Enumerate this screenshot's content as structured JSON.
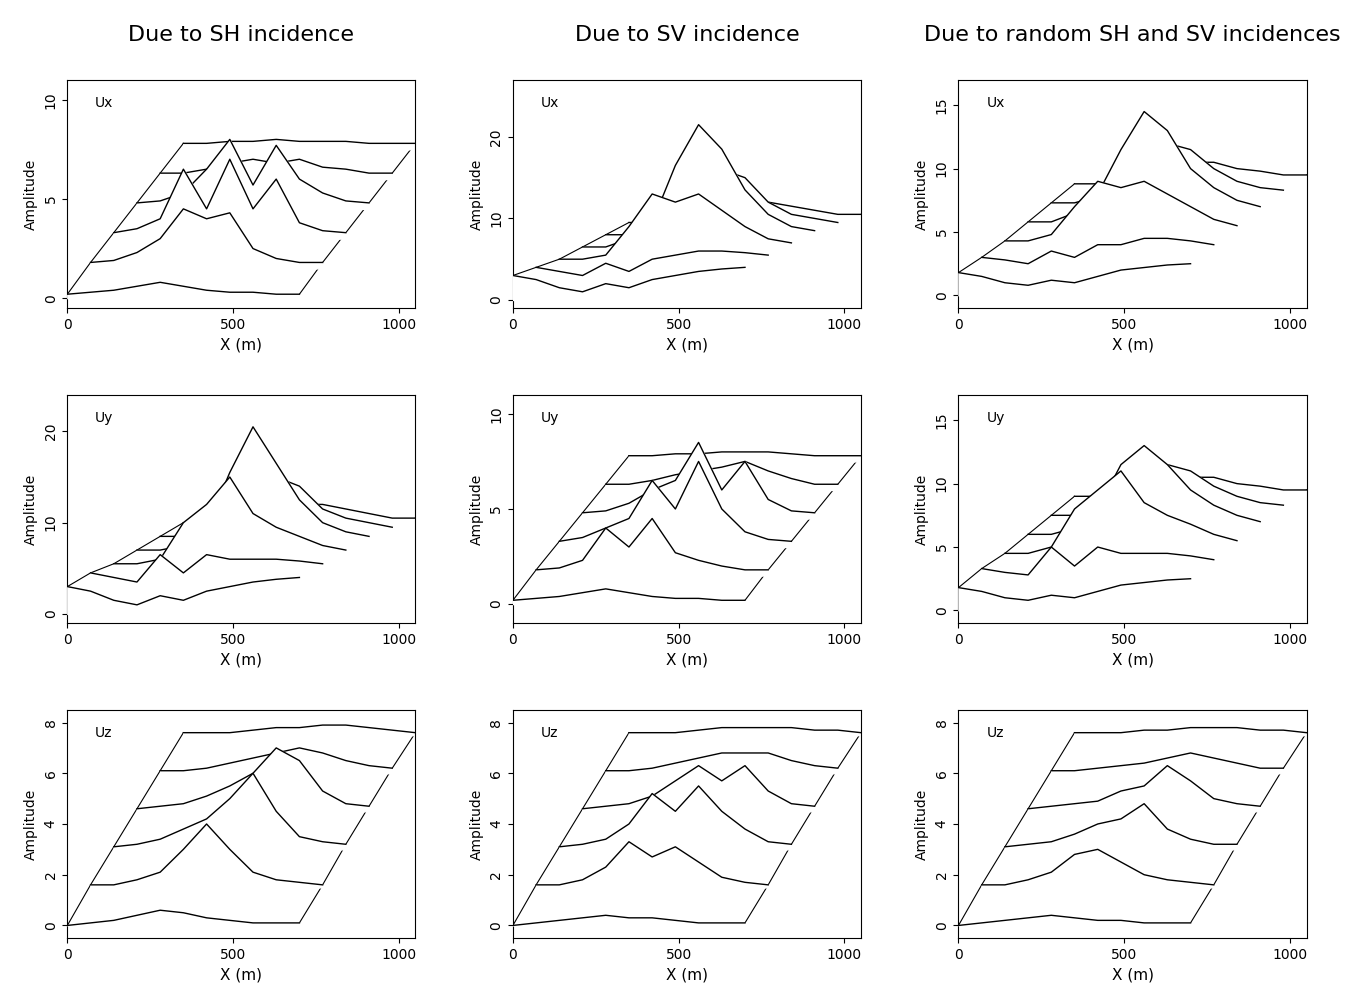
{
  "column_titles": [
    "Due to SH incidence",
    "Due to SV incidence",
    "Due to random SH and SV incidences"
  ],
  "chart_data": [
    {
      "type": "surface",
      "label": "Ux",
      "xlabel": "X (m)",
      "ylabel": "Amplitude",
      "x": [
        0,
        70,
        140,
        210,
        280,
        350,
        420,
        490,
        560,
        630,
        700
      ],
      "xlim": [
        0,
        1050
      ],
      "xticks": [
        0,
        500,
        1000
      ],
      "ylim": [
        -0.5,
        11
      ],
      "yticks": [
        0,
        5,
        10
      ],
      "series": [
        {
          "values": [
            0.2,
            0.3,
            0.4,
            0.6,
            0.8,
            0.6,
            0.4,
            0.3,
            0.3,
            0.2,
            0.2
          ]
        },
        {
          "values": [
            0.3,
            0.4,
            0.8,
            1.5,
            3.0,
            2.5,
            2.8,
            1.0,
            0.5,
            0.3,
            0.3
          ]
        },
        {
          "values": [
            0.3,
            0.5,
            1.0,
            3.5,
            1.5,
            4.0,
            1.5,
            3.0,
            0.8,
            0.4,
            0.3
          ]
        },
        {
          "values": [
            0.3,
            0.4,
            0.8,
            2.0,
            3.5,
            1.2,
            3.2,
            1.5,
            0.8,
            0.4,
            0.3
          ]
        },
        {
          "values": [
            0.3,
            0.3,
            0.5,
            0.8,
            1.0,
            0.8,
            1.0,
            0.6,
            0.5,
            0.3,
            0.3
          ]
        },
        {
          "values": [
            0.3,
            0.3,
            0.4,
            0.4,
            0.5,
            0.4,
            0.4,
            0.4,
            0.3,
            0.3,
            0.3
          ]
        }
      ]
    },
    {
      "type": "surface",
      "label": "Ux",
      "xlabel": "X (m)",
      "ylabel": "Amplitude",
      "x": [
        0,
        70,
        140,
        210,
        280,
        350,
        420,
        490,
        560,
        630,
        700
      ],
      "xlim": [
        0,
        1050
      ],
      "xticks": [
        0,
        500,
        1000
      ],
      "ylim": [
        -1,
        27
      ],
      "yticks": [
        0,
        10,
        20
      ],
      "series": [
        {
          "values": [
            3.0,
            2.5,
            1.5,
            1.0,
            2.0,
            1.5,
            2.5,
            3.0,
            3.5,
            3.8,
            4.0
          ]
        },
        {
          "values": [
            2.5,
            2.0,
            1.5,
            3.0,
            2.0,
            3.5,
            4.0,
            4.5,
            4.5,
            4.3,
            4.0
          ]
        },
        {
          "values": [
            2.0,
            2.0,
            2.5,
            6.0,
            10.0,
            9.0,
            10.0,
            8.0,
            6.0,
            4.5,
            4.0
          ]
        },
        {
          "values": [
            2.0,
            2.0,
            3.0,
            5.0,
            12.0,
            17.0,
            14.0,
            9.0,
            6.0,
            4.5,
            4.0
          ]
        },
        {
          "values": [
            2.0,
            2.0,
            2.5,
            3.5,
            6.0,
            10.0,
            9.0,
            6.0,
            4.5,
            4.0,
            3.5
          ]
        },
        {
          "values": [
            2.0,
            2.0,
            2.0,
            2.5,
            3.5,
            4.5,
            4.5,
            4.0,
            3.5,
            3.0,
            3.0
          ]
        }
      ]
    },
    {
      "type": "surface",
      "label": "Ux",
      "xlabel": "X (m)",
      "ylabel": "Amplitude",
      "x": [
        0,
        70,
        140,
        210,
        280,
        350,
        420,
        490,
        560,
        630,
        700
      ],
      "xlim": [
        0,
        1050
      ],
      "xticks": [
        0,
        500,
        1000
      ],
      "ylim": [
        -1,
        17
      ],
      "yticks": [
        0,
        5,
        10,
        15
      ],
      "series": [
        {
          "values": [
            1.8,
            1.5,
            1.0,
            0.8,
            1.2,
            1.0,
            1.5,
            2.0,
            2.2,
            2.4,
            2.5
          ]
        },
        {
          "values": [
            1.5,
            1.3,
            1.0,
            2.0,
            1.5,
            2.5,
            2.5,
            3.0,
            3.0,
            2.8,
            2.5
          ]
        },
        {
          "values": [
            1.3,
            1.3,
            1.8,
            4.0,
            6.0,
            5.5,
            6.0,
            5.0,
            4.0,
            3.0,
            2.5
          ]
        },
        {
          "values": [
            1.3,
            1.3,
            2.0,
            3.5,
            7.0,
            10.0,
            8.5,
            5.5,
            4.0,
            3.0,
            2.5
          ]
        },
        {
          "values": [
            1.3,
            1.3,
            1.8,
            2.5,
            4.0,
            6.0,
            5.5,
            4.0,
            3.0,
            2.5,
            2.3
          ]
        },
        {
          "values": [
            1.3,
            1.3,
            1.3,
            1.8,
            2.3,
            3.0,
            3.0,
            2.5,
            2.3,
            2.0,
            2.0
          ]
        }
      ]
    },
    {
      "type": "surface",
      "label": "Uy",
      "xlabel": "X (m)",
      "ylabel": "Amplitude",
      "x": [
        0,
        70,
        140,
        210,
        280,
        350,
        420,
        490,
        560,
        630,
        700
      ],
      "xlim": [
        0,
        1050
      ],
      "xticks": [
        0,
        500,
        1000
      ],
      "ylim": [
        -1,
        24
      ],
      "yticks": [
        0,
        10,
        20
      ],
      "series": [
        {
          "values": [
            3.0,
            2.5,
            1.5,
            1.0,
            2.0,
            1.5,
            2.5,
            3.0,
            3.5,
            3.8,
            4.0
          ]
        },
        {
          "values": [
            3.0,
            2.5,
            2.0,
            5.0,
            3.0,
            5.0,
            4.5,
            4.5,
            4.5,
            4.3,
            4.0
          ]
        },
        {
          "values": [
            2.5,
            2.5,
            3.0,
            7.0,
            9.0,
            12.0,
            8.0,
            6.5,
            5.5,
            4.5,
            4.0
          ]
        },
        {
          "values": [
            2.5,
            2.5,
            3.0,
            5.0,
            11.0,
            16.0,
            12.0,
            8.0,
            5.5,
            4.5,
            4.0
          ]
        },
        {
          "values": [
            2.5,
            2.5,
            2.5,
            3.5,
            6.0,
            9.0,
            8.0,
            5.5,
            4.5,
            4.0,
            3.5
          ]
        },
        {
          "values": [
            2.5,
            2.5,
            2.5,
            2.5,
            3.5,
            4.5,
            4.5,
            4.0,
            3.5,
            3.0,
            3.0
          ]
        }
      ]
    },
    {
      "type": "surface",
      "label": "Uy",
      "xlabel": "X (m)",
      "ylabel": "Amplitude",
      "x": [
        0,
        70,
        140,
        210,
        280,
        350,
        420,
        490,
        560,
        630,
        700
      ],
      "xlim": [
        0,
        1050
      ],
      "xticks": [
        0,
        500,
        1000
      ],
      "ylim": [
        -1,
        11
      ],
      "yticks": [
        0,
        5,
        10
      ],
      "series": [
        {
          "values": [
            0.2,
            0.3,
            0.4,
            0.6,
            0.8,
            0.6,
            0.4,
            0.3,
            0.3,
            0.2,
            0.2
          ]
        },
        {
          "values": [
            0.3,
            0.4,
            0.8,
            2.5,
            1.5,
            3.0,
            1.2,
            0.8,
            0.5,
            0.3,
            0.3
          ]
        },
        {
          "values": [
            0.3,
            0.5,
            1.0,
            1.5,
            3.5,
            2.0,
            4.5,
            2.0,
            0.8,
            0.4,
            0.3
          ]
        },
        {
          "values": [
            0.3,
            0.4,
            0.8,
            1.5,
            2.0,
            4.0,
            1.5,
            3.0,
            1.0,
            0.4,
            0.3
          ]
        },
        {
          "values": [
            0.3,
            0.3,
            0.5,
            0.8,
            1.0,
            1.2,
            1.5,
            1.0,
            0.6,
            0.3,
            0.3
          ]
        },
        {
          "values": [
            0.3,
            0.3,
            0.4,
            0.4,
            0.5,
            0.5,
            0.5,
            0.4,
            0.3,
            0.3,
            0.3
          ]
        }
      ]
    },
    {
      "type": "surface",
      "label": "Uy",
      "xlabel": "X (m)",
      "ylabel": "Amplitude",
      "x": [
        0,
        70,
        140,
        210,
        280,
        350,
        420,
        490,
        560,
        630,
        700
      ],
      "xlim": [
        0,
        1050
      ],
      "xticks": [
        0,
        500,
        1000
      ],
      "ylim": [
        -1,
        17
      ],
      "yticks": [
        0,
        5,
        10,
        15
      ],
      "series": [
        {
          "values": [
            1.8,
            1.5,
            1.0,
            0.8,
            1.2,
            1.0,
            1.5,
            2.0,
            2.2,
            2.4,
            2.5
          ]
        },
        {
          "values": [
            1.8,
            1.5,
            1.3,
            3.5,
            2.0,
            3.5,
            3.0,
            3.0,
            3.0,
            2.8,
            2.5
          ]
        },
        {
          "values": [
            1.5,
            1.5,
            2.0,
            5.0,
            6.5,
            8.0,
            5.5,
            4.5,
            3.8,
            3.0,
            2.5
          ]
        },
        {
          "values": [
            1.5,
            1.5,
            2.0,
            3.5,
            7.0,
            8.5,
            7.0,
            5.0,
            3.8,
            3.0,
            2.5
          ]
        },
        {
          "values": [
            1.5,
            1.5,
            1.8,
            2.5,
            4.0,
            5.5,
            5.0,
            3.8,
            3.0,
            2.5,
            2.3
          ]
        },
        {
          "values": [
            1.5,
            1.5,
            1.5,
            1.8,
            2.3,
            3.0,
            3.0,
            2.5,
            2.3,
            2.0,
            2.0
          ]
        }
      ]
    },
    {
      "type": "surface",
      "label": "Uz",
      "xlabel": "X (m)",
      "ylabel": "Amplitude",
      "x": [
        0,
        70,
        140,
        210,
        280,
        350,
        420,
        490,
        560,
        630,
        700
      ],
      "xlim": [
        0,
        1050
      ],
      "xticks": [
        0,
        500,
        1000
      ],
      "ylim": [
        -0.5,
        8.5
      ],
      "yticks": [
        0,
        2,
        4,
        6,
        8
      ],
      "series": [
        {
          "values": [
            0.0,
            0.1,
            0.2,
            0.4,
            0.6,
            0.5,
            0.3,
            0.2,
            0.1,
            0.1,
            0.1
          ]
        },
        {
          "values": [
            0.1,
            0.1,
            0.3,
            0.6,
            1.5,
            2.5,
            1.5,
            0.6,
            0.3,
            0.2,
            0.1
          ]
        },
        {
          "values": [
            0.1,
            0.2,
            0.4,
            0.8,
            1.2,
            2.0,
            3.0,
            1.5,
            0.5,
            0.3,
            0.2
          ]
        },
        {
          "values": [
            0.1,
            0.2,
            0.3,
            0.6,
            1.0,
            1.5,
            2.5,
            2.0,
            0.8,
            0.3,
            0.2
          ]
        },
        {
          "values": [
            0.1,
            0.1,
            0.2,
            0.4,
            0.6,
            0.8,
            1.0,
            0.8,
            0.5,
            0.3,
            0.2
          ]
        },
        {
          "values": [
            0.1,
            0.1,
            0.1,
            0.2,
            0.3,
            0.3,
            0.4,
            0.4,
            0.3,
            0.2,
            0.1
          ]
        }
      ]
    },
    {
      "type": "surface",
      "label": "Uz",
      "xlabel": "X (m)",
      "ylabel": "Amplitude",
      "x": [
        0,
        70,
        140,
        210,
        280,
        350,
        420,
        490,
        560,
        630,
        700
      ],
      "xlim": [
        0,
        1050
      ],
      "xticks": [
        0,
        500,
        1000
      ],
      "ylim": [
        -0.5,
        8.5
      ],
      "yticks": [
        0,
        2,
        4,
        6,
        8
      ],
      "series": [
        {
          "values": [
            0.0,
            0.1,
            0.2,
            0.3,
            0.4,
            0.3,
            0.3,
            0.2,
            0.1,
            0.1,
            0.1
          ]
        },
        {
          "values": [
            0.1,
            0.1,
            0.3,
            0.8,
            1.8,
            1.2,
            1.6,
            1.0,
            0.4,
            0.2,
            0.1
          ]
        },
        {
          "values": [
            0.1,
            0.2,
            0.4,
            1.0,
            2.2,
            1.5,
            2.5,
            1.5,
            0.8,
            0.3,
            0.2
          ]
        },
        {
          "values": [
            0.1,
            0.2,
            0.3,
            0.6,
            1.2,
            1.8,
            1.2,
            1.8,
            0.8,
            0.3,
            0.2
          ]
        },
        {
          "values": [
            0.1,
            0.1,
            0.2,
            0.4,
            0.6,
            0.8,
            0.8,
            0.8,
            0.5,
            0.3,
            0.2
          ]
        },
        {
          "values": [
            0.1,
            0.1,
            0.1,
            0.2,
            0.3,
            0.3,
            0.3,
            0.3,
            0.2,
            0.2,
            0.1
          ]
        }
      ]
    },
    {
      "type": "surface",
      "label": "Uz",
      "xlabel": "X (m)",
      "ylabel": "Amplitude",
      "x": [
        0,
        70,
        140,
        210,
        280,
        350,
        420,
        490,
        560,
        630,
        700
      ],
      "xlim": [
        0,
        1050
      ],
      "xticks": [
        0,
        500,
        1000
      ],
      "ylim": [
        -0.5,
        8.5
      ],
      "yticks": [
        0,
        2,
        4,
        6,
        8
      ],
      "series": [
        {
          "values": [
            0.0,
            0.1,
            0.2,
            0.3,
            0.4,
            0.3,
            0.2,
            0.2,
            0.1,
            0.1,
            0.1
          ]
        },
        {
          "values": [
            0.1,
            0.1,
            0.3,
            0.6,
            1.3,
            1.5,
            1.0,
            0.5,
            0.3,
            0.2,
            0.1
          ]
        },
        {
          "values": [
            0.1,
            0.2,
            0.3,
            0.6,
            1.0,
            1.2,
            1.8,
            0.8,
            0.4,
            0.2,
            0.2
          ]
        },
        {
          "values": [
            0.1,
            0.2,
            0.3,
            0.4,
            0.8,
            1.0,
            1.8,
            1.2,
            0.5,
            0.3,
            0.2
          ]
        },
        {
          "values": [
            0.1,
            0.1,
            0.2,
            0.3,
            0.4,
            0.6,
            0.8,
            0.6,
            0.4,
            0.2,
            0.2
          ]
        },
        {
          "values": [
            0.1,
            0.1,
            0.1,
            0.2,
            0.2,
            0.3,
            0.3,
            0.3,
            0.2,
            0.2,
            0.1
          ]
        }
      ]
    }
  ]
}
